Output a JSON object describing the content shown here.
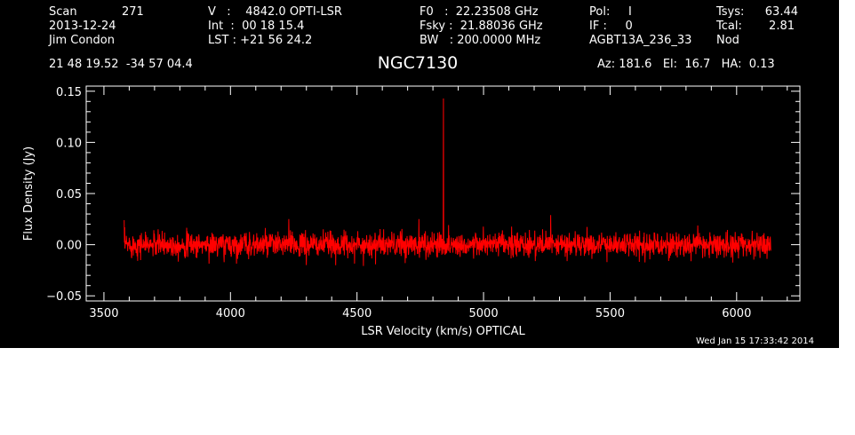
{
  "header": {
    "scan_label": "Scan",
    "scan_value": "271",
    "date": "2013-12-24",
    "observer": "Jim Condon",
    "velocity": "V   :    4842.0 OPTI-LSR",
    "integration": "Int  :  00 18 15.4",
    "lst": "LST : +21 56 24.2",
    "f0": "F0   :  22.23508 GHz",
    "fsky": "Fsky :  21.88036 GHz",
    "bw": "BW   : 200.0000 MHz",
    "pol": "Pol:     I",
    "if": "IF :     0",
    "project": "AGBT13A_236_33",
    "tsys_label": "Tsys:",
    "tsys_value": "63.44",
    "tcal_label": "Tcal:",
    "tcal_value": "2.81",
    "mode": "Nod",
    "coordinates": "21 48 19.52  -34 57 04.4",
    "pointing": "Az: 181.6   El:  16.7   HA:  0.13"
  },
  "footer": {
    "timestamp": "Wed Jan 15 17:33:42 2014"
  },
  "colors": {
    "background": "#000000",
    "axes": "#ffffff",
    "series": "#ff0000"
  },
  "chart_data": {
    "type": "line",
    "title": "NGC7130",
    "xlabel": "LSR Velocity (km/s) OPTICAL",
    "ylabel": "Flux Density (Jy)",
    "xlim": [
      3430,
      6250
    ],
    "ylim": [
      -0.055,
      0.155
    ],
    "x_ticks": [
      3500,
      4000,
      4500,
      5000,
      5500,
      6000
    ],
    "x_tick_labels": [
      "3500",
      "4000",
      "4500",
      "5000",
      "5500",
      "6000"
    ],
    "y_ticks": [
      -0.05,
      0.0,
      0.05,
      0.1,
      0.15
    ],
    "y_tick_labels": [
      "−0.05",
      "0.00",
      "0.05",
      "0.10",
      "0.15"
    ],
    "grid": false,
    "series": [
      {
        "x_start": 3580,
        "x_end": 6135,
        "baseline": 0.0,
        "noise_rms": 0.006,
        "features": [
          {
            "x": 4842,
            "y": 0.143
          },
          {
            "x": 4745,
            "y": 0.025
          },
          {
            "x": 5265,
            "y": 0.029
          },
          {
            "x": 4230,
            "y": 0.025
          },
          {
            "x": 3580,
            "y": 0.024
          },
          {
            "x": 4690,
            "y": -0.018
          },
          {
            "x": 4300,
            "y": -0.02
          }
        ]
      }
    ]
  }
}
